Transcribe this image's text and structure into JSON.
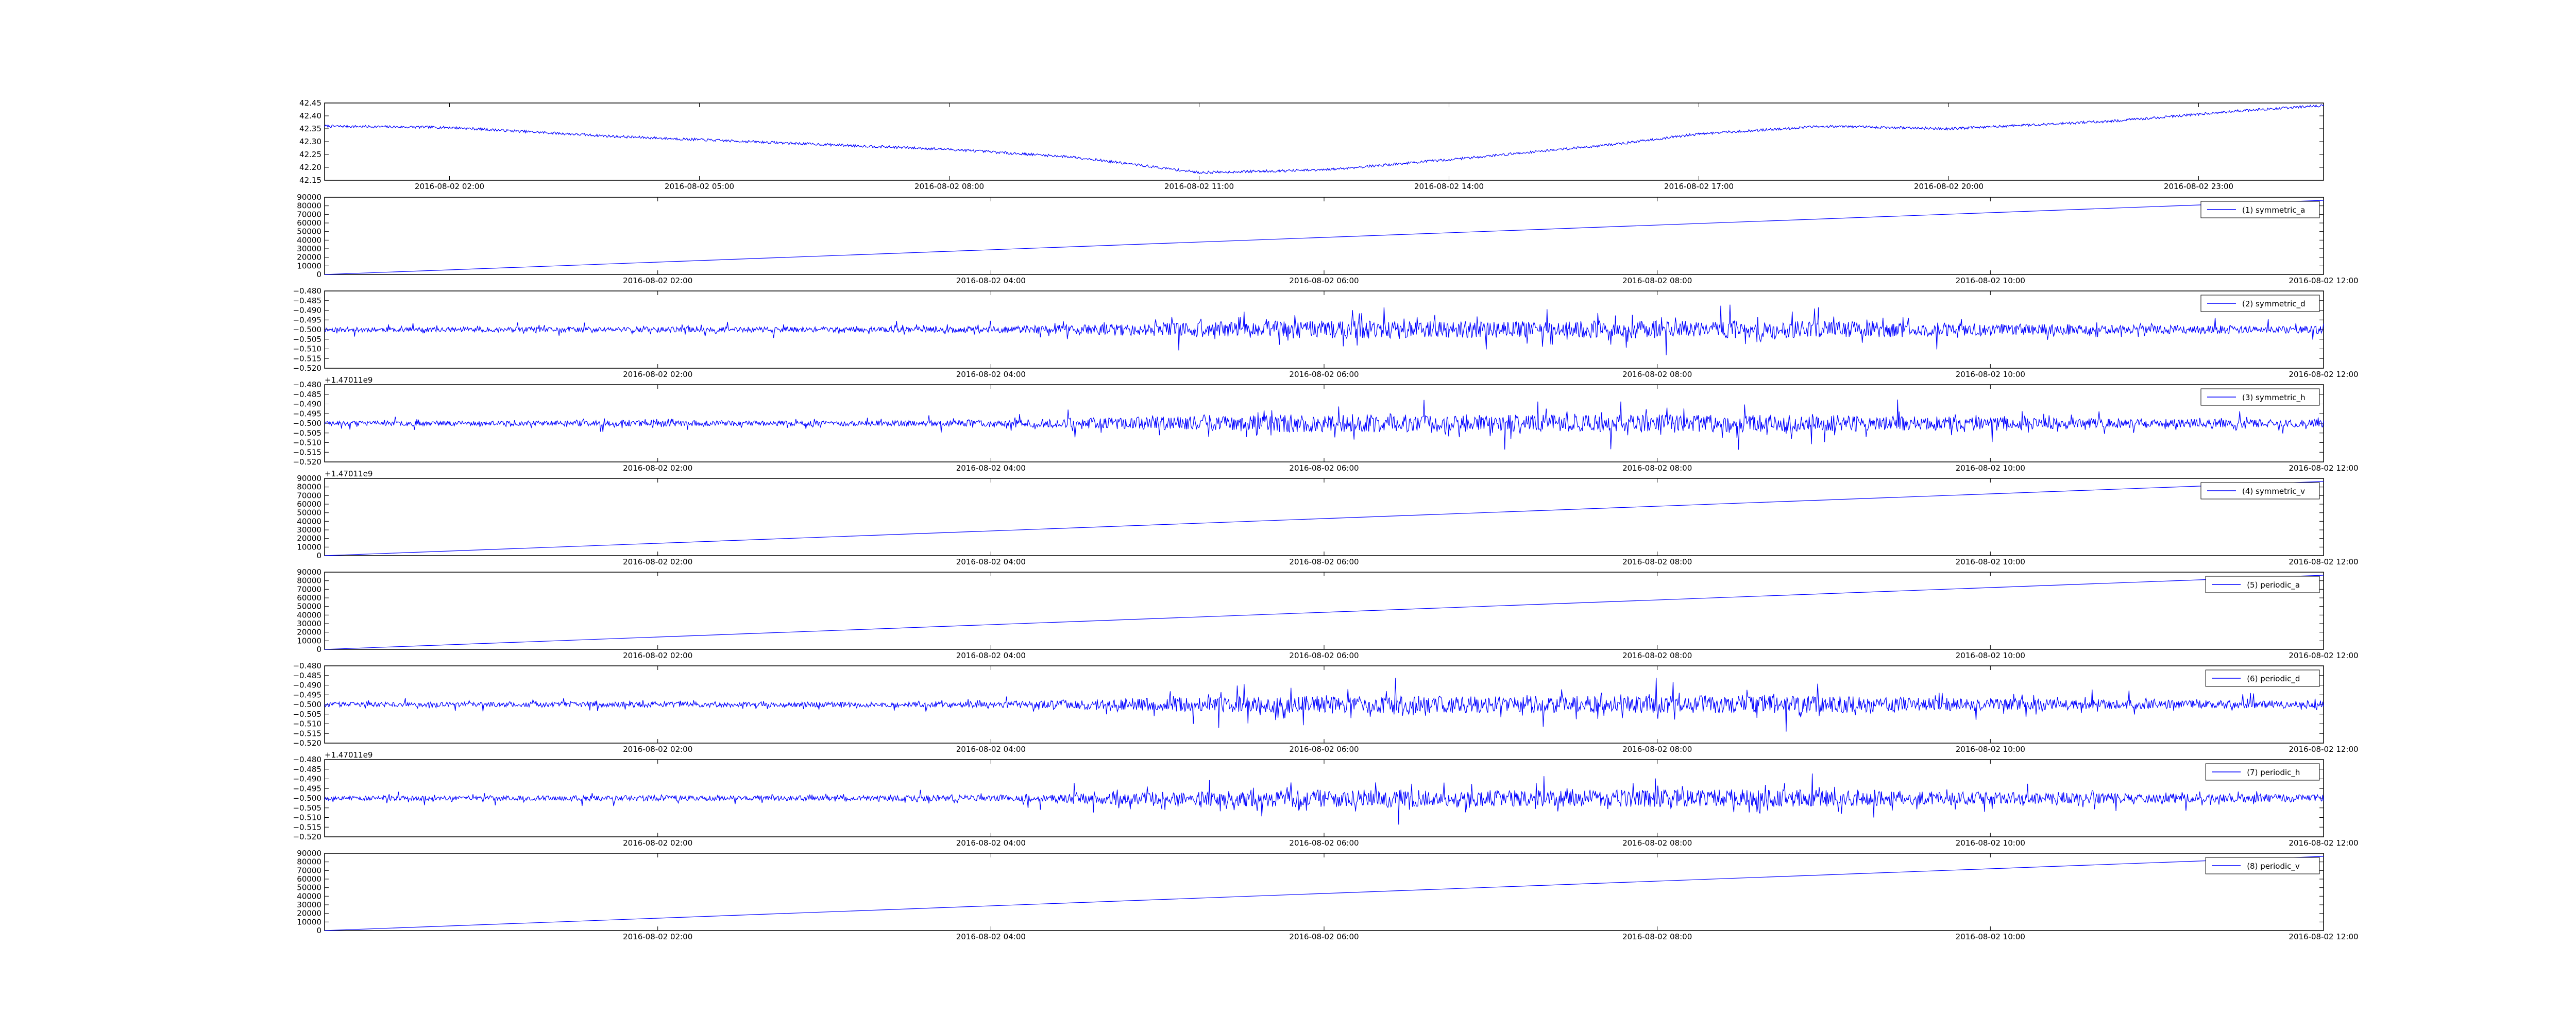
{
  "figure": {
    "background": "#ffffff",
    "line_color": "#0000ff",
    "axis_color": "#000000"
  },
  "chart_data": [
    {
      "id": "p0",
      "type": "line",
      "title": "",
      "xlabel": "",
      "ylabel": "",
      "legend": null,
      "y_offset_label": "",
      "ylim": [
        42.15,
        42.45
      ],
      "yticks": [
        "42.15",
        "42.20",
        "42.25",
        "42.30",
        "42.35",
        "42.40",
        "42.45"
      ],
      "xlim": [
        "2016-08-02 00:30",
        "2016-08-03 00:30"
      ],
      "xticks": [
        "2016-08-02 02:00",
        "2016-08-02 05:00",
        "2016-08-02 08:00",
        "2016-08-02 11:00",
        "2016-08-02 14:00",
        "2016-08-02 17:00",
        "2016-08-02 20:00",
        "2016-08-02 23:00"
      ],
      "signal": {
        "kind": "smooth",
        "points": [
          [
            "2016-08-02 00:30",
            42.36
          ],
          [
            "2016-08-02 02:00",
            42.355
          ],
          [
            "2016-08-02 04:00",
            42.32
          ],
          [
            "2016-08-02 06:00",
            42.295
          ],
          [
            "2016-08-02 08:00",
            42.27
          ],
          [
            "2016-08-02 09:30",
            42.24
          ],
          [
            "2016-08-02 11:00",
            42.18
          ],
          [
            "2016-08-02 12:30",
            42.19
          ],
          [
            "2016-08-02 14:00",
            42.23
          ],
          [
            "2016-08-02 16:00",
            42.29
          ],
          [
            "2016-08-02 17:00",
            42.33
          ],
          [
            "2016-08-02 18:30",
            42.36
          ],
          [
            "2016-08-02 20:00",
            42.35
          ],
          [
            "2016-08-02 22:00",
            42.38
          ],
          [
            "2016-08-02 23:30",
            42.42
          ],
          [
            "2016-08-03 00:30",
            42.44
          ]
        ],
        "noise": 0.005
      }
    },
    {
      "id": "p1",
      "type": "line",
      "title": "",
      "xlabel": "",
      "ylabel": "",
      "legend": "(1) symmetric_a",
      "y_offset_label": "",
      "ylim": [
        0,
        90000
      ],
      "yticks": [
        "0",
        "10000",
        "20000",
        "30000",
        "40000",
        "50000",
        "60000",
        "70000",
        "80000",
        "90000"
      ],
      "xlim": [
        "2016-08-02 00:00",
        "2016-08-02 12:00"
      ],
      "xticks": [
        "2016-08-02 02:00",
        "2016-08-02 04:00",
        "2016-08-02 06:00",
        "2016-08-02 08:00",
        "2016-08-02 10:00",
        "2016-08-02 12:00"
      ],
      "signal": {
        "kind": "linear",
        "points": [
          [
            "2016-08-02 00:00",
            0
          ],
          [
            "2016-08-02 12:00",
            86400
          ]
        ]
      }
    },
    {
      "id": "p2",
      "type": "line",
      "title": "",
      "xlabel": "",
      "ylabel": "",
      "legend": "(2) symmetric_d",
      "y_offset_label": "",
      "ylim": [
        -0.52,
        -0.48
      ],
      "yticks": [
        "−0.520",
        "−0.515",
        "−0.510",
        "−0.505",
        "−0.500",
        "−0.495",
        "−0.490",
        "−0.485",
        "−0.480"
      ],
      "xlim": [
        "2016-08-02 00:00",
        "2016-08-02 12:00"
      ],
      "xticks": [
        "2016-08-02 02:00",
        "2016-08-02 04:00",
        "2016-08-02 06:00",
        "2016-08-02 08:00",
        "2016-08-02 10:00",
        "2016-08-02 12:00"
      ],
      "signal": {
        "kind": "noise",
        "center": -0.5,
        "amplitude": [
          0.0012,
          0.0012,
          0.0015,
          0.0013,
          0.0016,
          0.0035,
          0.0048,
          0.0042,
          0.0046,
          0.0044,
          0.0032,
          0.0022,
          0.002
        ],
        "seed": 11
      }
    },
    {
      "id": "p3",
      "type": "line",
      "title": "",
      "xlabel": "",
      "ylabel": "",
      "legend": "(3) symmetric_h",
      "y_offset_label": "+1.47011e9",
      "ylim": [
        -0.52,
        -0.48
      ],
      "yticks": [
        "−0.520",
        "−0.515",
        "−0.510",
        "−0.505",
        "−0.500",
        "−0.495",
        "−0.490",
        "−0.485",
        "−0.480"
      ],
      "xlim": [
        "2016-08-02 00:00",
        "2016-08-02 12:00"
      ],
      "xticks": [
        "2016-08-02 02:00",
        "2016-08-02 04:00",
        "2016-08-02 06:00",
        "2016-08-02 08:00",
        "2016-08-02 10:00",
        "2016-08-02 12:00"
      ],
      "signal": {
        "kind": "noise",
        "center": -0.5,
        "amplitude": [
          0.0012,
          0.0012,
          0.0015,
          0.0013,
          0.0016,
          0.0035,
          0.0048,
          0.0042,
          0.0046,
          0.0044,
          0.0032,
          0.0022,
          0.002
        ],
        "seed": 23
      }
    },
    {
      "id": "p4",
      "type": "line",
      "title": "",
      "xlabel": "",
      "ylabel": "",
      "legend": "(4) symmetric_v",
      "y_offset_label": "+1.47011e9",
      "ylim": [
        0,
        90000
      ],
      "yticks": [
        "0",
        "10000",
        "20000",
        "30000",
        "40000",
        "50000",
        "60000",
        "70000",
        "80000",
        "90000"
      ],
      "xlim": [
        "2016-08-02 00:00",
        "2016-08-02 12:00"
      ],
      "xticks": [
        "2016-08-02 02:00",
        "2016-08-02 04:00",
        "2016-08-02 06:00",
        "2016-08-02 08:00",
        "2016-08-02 10:00",
        "2016-08-02 12:00"
      ],
      "signal": {
        "kind": "linear",
        "points": [
          [
            "2016-08-02 00:00",
            0
          ],
          [
            "2016-08-02 12:00",
            86400
          ]
        ]
      }
    },
    {
      "id": "p5",
      "type": "line",
      "title": "",
      "xlabel": "",
      "ylabel": "",
      "legend": "(5) periodic_a",
      "y_offset_label": "",
      "ylim": [
        0,
        90000
      ],
      "yticks": [
        "0",
        "10000",
        "20000",
        "30000",
        "40000",
        "50000",
        "60000",
        "70000",
        "80000",
        "90000"
      ],
      "xlim": [
        "2016-08-02 00:00",
        "2016-08-02 12:00"
      ],
      "xticks": [
        "2016-08-02 02:00",
        "2016-08-02 04:00",
        "2016-08-02 06:00",
        "2016-08-02 08:00",
        "2016-08-02 10:00",
        "2016-08-02 12:00"
      ],
      "signal": {
        "kind": "linear",
        "points": [
          [
            "2016-08-02 00:00",
            0
          ],
          [
            "2016-08-02 12:00",
            86400
          ]
        ]
      }
    },
    {
      "id": "p6",
      "type": "line",
      "title": "",
      "xlabel": "",
      "ylabel": "",
      "legend": "(6) periodic_d",
      "y_offset_label": "",
      "ylim": [
        -0.52,
        -0.48
      ],
      "yticks": [
        "−0.520",
        "−0.515",
        "−0.510",
        "−0.505",
        "−0.500",
        "−0.495",
        "−0.490",
        "−0.485",
        "−0.480"
      ],
      "xlim": [
        "2016-08-02 00:00",
        "2016-08-02 12:00"
      ],
      "xticks": [
        "2016-08-02 02:00",
        "2016-08-02 04:00",
        "2016-08-02 06:00",
        "2016-08-02 08:00",
        "2016-08-02 10:00",
        "2016-08-02 12:00"
      ],
      "signal": {
        "kind": "noise",
        "center": -0.5,
        "amplitude": [
          0.0012,
          0.0012,
          0.0015,
          0.0013,
          0.0016,
          0.0035,
          0.0048,
          0.0042,
          0.0046,
          0.0044,
          0.0032,
          0.0022,
          0.002
        ],
        "seed": 37
      }
    },
    {
      "id": "p7",
      "type": "line",
      "title": "",
      "xlabel": "",
      "ylabel": "",
      "legend": "(7) periodic_h",
      "y_offset_label": "+1.47011e9",
      "ylim": [
        -0.52,
        -0.48
      ],
      "yticks": [
        "−0.520",
        "−0.515",
        "−0.510",
        "−0.505",
        "−0.500",
        "−0.495",
        "−0.490",
        "−0.485",
        "−0.480"
      ],
      "xlim": [
        "2016-08-02 00:00",
        "2016-08-02 12:00"
      ],
      "xticks": [
        "2016-08-02 02:00",
        "2016-08-02 04:00",
        "2016-08-02 06:00",
        "2016-08-02 08:00",
        "2016-08-02 10:00",
        "2016-08-02 12:00"
      ],
      "signal": {
        "kind": "noise",
        "center": -0.5,
        "amplitude": [
          0.0012,
          0.0012,
          0.0015,
          0.0013,
          0.0016,
          0.0035,
          0.0048,
          0.0042,
          0.0046,
          0.0044,
          0.0032,
          0.0022,
          0.002
        ],
        "seed": 53
      }
    },
    {
      "id": "p8",
      "type": "line",
      "title": "",
      "xlabel": "",
      "ylabel": "",
      "legend": "(8) periodic_v",
      "y_offset_label": "",
      "ylim": [
        0,
        90000
      ],
      "yticks": [
        "0",
        "10000",
        "20000",
        "30000",
        "40000",
        "50000",
        "60000",
        "70000",
        "80000",
        "90000"
      ],
      "xlim": [
        "2016-08-02 00:00",
        "2016-08-02 12:00"
      ],
      "xticks": [
        "2016-08-02 02:00",
        "2016-08-02 04:00",
        "2016-08-02 06:00",
        "2016-08-02 08:00",
        "2016-08-02 10:00",
        "2016-08-02 12:00"
      ],
      "signal": {
        "kind": "linear",
        "points": [
          [
            "2016-08-02 00:00",
            0
          ],
          [
            "2016-08-02 12:00",
            86400
          ]
        ]
      }
    }
  ]
}
